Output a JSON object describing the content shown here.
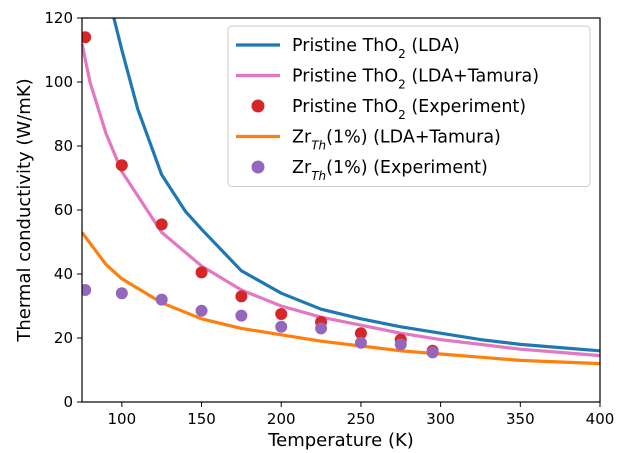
{
  "chart_data": {
    "type": "line",
    "xlabel": "Temperature (K)",
    "ylabel": "Thermal conductivity (W/mK)",
    "xlim": [
      75,
      400
    ],
    "ylim": [
      0,
      120
    ],
    "xticks": [
      "100",
      "150",
      "200",
      "250",
      "300",
      "350",
      "400"
    ],
    "yticks": [
      "0",
      "20",
      "40",
      "60",
      "80",
      "100",
      "120"
    ],
    "legend_position": "top-right",
    "series": [
      {
        "name": "Pristine ThO₂ (LDA)",
        "kind": "line",
        "color": "#1f77b4",
        "x": [
          95,
          100,
          110,
          125,
          140,
          150,
          175,
          200,
          225,
          250,
          275,
          300,
          325,
          350,
          375,
          400
        ],
        "y": [
          120,
          110,
          91.5,
          71,
          59.5,
          54,
          41,
          34,
          29,
          26,
          23.5,
          21.5,
          19.5,
          18,
          17,
          16
        ]
      },
      {
        "name": "Pristine ThO₂ (LDA+Tamura)",
        "kind": "line",
        "color": "#e377c2",
        "x": [
          75,
          80,
          90,
          100,
          125,
          150,
          175,
          200,
          225,
          250,
          275,
          300,
          325,
          350,
          375,
          400
        ],
        "y": [
          112,
          100,
          84,
          72,
          53,
          42.5,
          35,
          30,
          26.5,
          24,
          21.5,
          19.5,
          18,
          16.5,
          15.5,
          14.5
        ]
      },
      {
        "name": "Pristine ThO₂ (Experiment)",
        "kind": "scatter",
        "color": "#d62728",
        "x": [
          77,
          100,
          125,
          150,
          175,
          200,
          225,
          250,
          275,
          295
        ],
        "y": [
          114,
          74,
          55.5,
          40.5,
          33,
          27.5,
          25,
          21.5,
          19.5,
          16
        ]
      },
      {
        "name": "Zr_Th(1%) (LDA+Tamura)",
        "kind": "line",
        "color": "#ff7f0e",
        "x": [
          75,
          90,
          100,
          125,
          150,
          175,
          200,
          225,
          250,
          275,
          300,
          325,
          350,
          375,
          400
        ],
        "y": [
          53,
          43,
          38.5,
          31,
          26,
          23,
          21,
          19,
          17.5,
          16,
          15,
          14,
          13,
          12.5,
          12
        ]
      },
      {
        "name": "Zr_Th(1%) (Experiment)",
        "kind": "scatter",
        "color": "#9467bd",
        "x": [
          77,
          100,
          125,
          150,
          175,
          200,
          225,
          250,
          275,
          295
        ],
        "y": [
          35,
          34,
          32,
          28.5,
          27,
          23.5,
          23,
          18.5,
          18,
          15.5
        ]
      }
    ]
  }
}
